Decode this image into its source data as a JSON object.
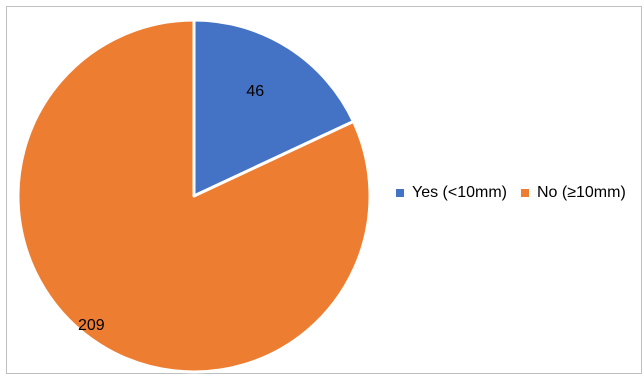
{
  "chart_data": {
    "type": "pie",
    "title": "",
    "categories": [
      "Yes (<10mm)",
      "No (≥10mm)"
    ],
    "values": [
      46,
      209
    ],
    "colors": [
      "#4472c4",
      "#ed7d31"
    ],
    "slice_border_color": "#ffffff",
    "start_angle": "12 o'clock, clockwise",
    "data_labels": [
      "46",
      "209"
    ],
    "legend": {
      "placement": "right",
      "entries": [
        {
          "label": "Yes (<10mm)",
          "color": "#4472c4"
        },
        {
          "label": "No (≥10mm)",
          "color": "#ed7d31"
        }
      ]
    }
  }
}
